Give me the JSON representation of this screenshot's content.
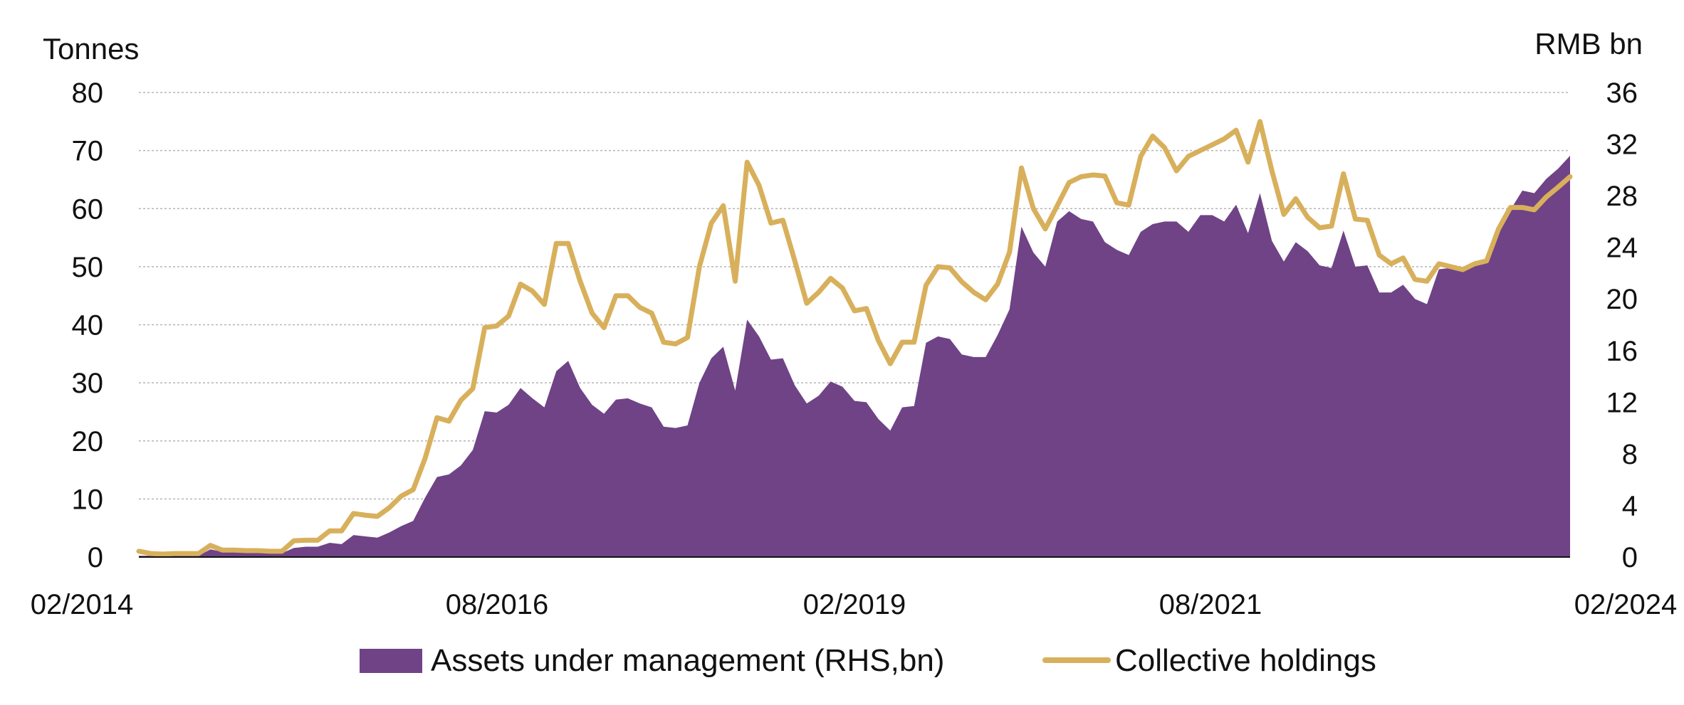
{
  "chart_data": {
    "type": "area+line",
    "title": "",
    "left_axis": {
      "label": "Tonnes",
      "ticks": [
        0,
        10,
        20,
        30,
        40,
        50,
        60,
        70,
        80
      ],
      "ylim": [
        0,
        80
      ]
    },
    "right_axis": {
      "label": "RMB bn",
      "ticks": [
        0,
        4,
        8,
        12,
        16,
        20,
        24,
        28,
        32,
        36
      ],
      "ylim": [
        0,
        36
      ]
    },
    "x_axis": {
      "ticks": [
        "02/2014",
        "08/2016",
        "02/2019",
        "08/2021",
        "02/2024"
      ],
      "start_month_index": 0,
      "months": 121
    },
    "grid": "horizontal dotted",
    "legend_position": "bottom",
    "colors": {
      "area": "#6f4386",
      "line": "#d8b05c",
      "grid": "#b5b5b5",
      "axis": "#111111"
    },
    "series": [
      {
        "name": "Assets under management (RHS,bn)",
        "axis": "right",
        "kind": "area",
        "values": [
          0.1,
          0.1,
          0.1,
          0.1,
          0.1,
          0.1,
          0.6,
          0.4,
          0.4,
          0.4,
          0.4,
          0.3,
          0.3,
          0.7,
          0.8,
          0.8,
          1.1,
          1.0,
          1.7,
          1.6,
          1.5,
          1.9,
          2.4,
          2.8,
          4.6,
          6.2,
          6.4,
          7.1,
          8.3,
          11.3,
          11.2,
          11.8,
          13.1,
          12.3,
          11.6,
          14.4,
          15.2,
          13.1,
          11.8,
          11.1,
          12.2,
          12.3,
          11.9,
          11.6,
          10.1,
          10.0,
          10.2,
          13.5,
          15.4,
          16.3,
          12.9,
          18.4,
          17.1,
          15.3,
          15.4,
          13.3,
          11.9,
          12.5,
          13.6,
          13.2,
          12.1,
          12.0,
          10.7,
          9.8,
          11.6,
          11.7,
          16.6,
          17.1,
          16.9,
          15.7,
          15.5,
          15.5,
          17.2,
          19.2,
          25.6,
          23.6,
          22.5,
          26.0,
          26.8,
          26.2,
          26.0,
          24.4,
          23.8,
          23.4,
          25.2,
          25.8,
          26.0,
          26.0,
          25.2,
          26.5,
          26.5,
          26.0,
          27.3,
          25.1,
          28.2,
          24.5,
          22.9,
          24.4,
          23.7,
          22.6,
          22.4,
          25.3,
          22.5,
          22.6,
          20.5,
          20.5,
          21.1,
          20.0,
          19.6,
          22.3,
          22.4,
          22.2,
          22.6,
          23.0,
          25.4,
          26.9,
          28.4,
          28.2,
          29.3,
          30.1,
          31.1
        ]
      },
      {
        "name": "Collective holdings",
        "axis": "left",
        "kind": "line",
        "values": [
          1.0,
          0.6,
          0.5,
          0.6,
          0.6,
          0.6,
          2.0,
          1.2,
          1.2,
          1.1,
          1.1,
          1.0,
          1.0,
          2.8,
          2.9,
          2.9,
          4.5,
          4.5,
          7.5,
          7.2,
          7.0,
          8.5,
          10.5,
          11.6,
          17.0,
          24.0,
          23.4,
          27.0,
          29.0,
          39.5,
          39.8,
          41.5,
          47.0,
          45.8,
          43.5,
          54.0,
          54.0,
          47.5,
          42.0,
          39.5,
          45.0,
          45.0,
          43.0,
          42.0,
          37.0,
          36.7,
          37.8,
          50.0,
          57.5,
          60.5,
          47.5,
          68.0,
          64.0,
          57.5,
          58.0,
          51.0,
          43.7,
          45.6,
          48.0,
          46.3,
          42.4,
          42.8,
          37.3,
          33.3,
          37.0,
          37.0,
          46.8,
          50.0,
          49.8,
          47.4,
          45.6,
          44.3,
          47.0,
          52.5,
          67.0,
          60.0,
          56.5,
          60.5,
          64.5,
          65.5,
          65.8,
          65.6,
          61.0,
          60.6,
          69.0,
          72.5,
          70.5,
          66.5,
          69.0,
          70.0,
          71.0,
          72.0,
          73.5,
          68.0,
          75.0,
          66.5,
          59.0,
          61.7,
          58.5,
          56.7,
          57.0,
          66.0,
          58.2,
          58.0,
          52.0,
          50.5,
          51.5,
          47.8,
          47.5,
          50.5,
          50.0,
          49.5,
          50.5,
          51.0,
          56.5,
          60.2,
          60.2,
          59.8,
          62.0,
          63.7,
          65.5
        ]
      }
    ]
  }
}
